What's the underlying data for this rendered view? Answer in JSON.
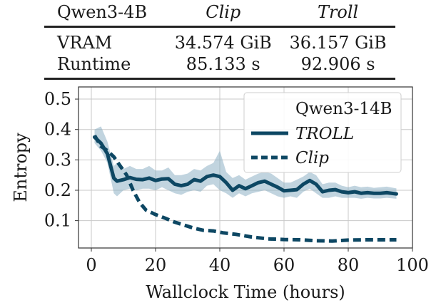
{
  "table": {
    "headers": [
      "Qwen3-4B",
      "Clip",
      "Troll"
    ],
    "rows": [
      {
        "label": "VRAM",
        "clip": "34.574 GiB",
        "troll": "36.157 GiB"
      },
      {
        "label": "Runtime",
        "clip": "85.133 s",
        "troll": "92.906 s"
      }
    ]
  },
  "chart_data": {
    "type": "line",
    "title": "",
    "xlabel": "Wallclock Time (hours)",
    "ylabel": "Entropy",
    "xlim": [
      -4,
      100
    ],
    "ylim": [
      0.01,
      0.54
    ],
    "xticks": [
      0,
      20,
      40,
      60,
      80,
      100
    ],
    "yticks": [
      0.1,
      0.2,
      0.3,
      0.4,
      0.5
    ],
    "xtick_labels": [
      "0",
      "20",
      "40",
      "60",
      "80",
      "100"
    ],
    "ytick_labels": [
      "0.1",
      "0.2",
      "0.3",
      "0.4",
      "0.5"
    ],
    "grid": true,
    "legend": {
      "title": "Qwen3-14B",
      "position": "top-right"
    },
    "colors": {
      "series": "#0d4763",
      "band": "#8eb1c5"
    },
    "series": [
      {
        "name": "TROLL",
        "style": "solid",
        "x": [
          1,
          3,
          5,
          7,
          8,
          10,
          12,
          14,
          16,
          18,
          20,
          22,
          24,
          26,
          28,
          30,
          32,
          34,
          36,
          38,
          40,
          42,
          44,
          46,
          48,
          50,
          52,
          54,
          56,
          58,
          60,
          62,
          64,
          66,
          68,
          70,
          72,
          74,
          76,
          78,
          80,
          82,
          84,
          86,
          88,
          90,
          92,
          95
        ],
        "y": [
          0.375,
          0.355,
          0.32,
          0.24,
          0.23,
          0.235,
          0.242,
          0.236,
          0.235,
          0.24,
          0.232,
          0.237,
          0.238,
          0.22,
          0.215,
          0.22,
          0.235,
          0.23,
          0.245,
          0.25,
          0.245,
          0.225,
          0.2,
          0.215,
          0.205,
          0.215,
          0.225,
          0.23,
          0.22,
          0.21,
          0.198,
          0.2,
          0.202,
          0.22,
          0.232,
          0.22,
          0.195,
          0.2,
          0.202,
          0.195,
          0.192,
          0.195,
          0.19,
          0.192,
          0.19,
          0.19,
          0.192,
          0.188
        ],
        "band": {
          "lower": [
            0.355,
            0.33,
            0.29,
            0.19,
            0.18,
            0.2,
            0.205,
            0.2,
            0.205,
            0.205,
            0.2,
            0.21,
            0.2,
            0.19,
            0.185,
            0.195,
            0.2,
            0.195,
            0.215,
            0.22,
            0.2,
            0.19,
            0.175,
            0.19,
            0.18,
            0.19,
            0.195,
            0.2,
            0.19,
            0.18,
            0.175,
            0.18,
            0.175,
            0.195,
            0.205,
            0.19,
            0.175,
            0.175,
            0.18,
            0.175,
            0.175,
            0.175,
            0.172,
            0.175,
            0.173,
            0.173,
            0.175,
            0.172
          ],
          "upper": [
            0.4,
            0.41,
            0.36,
            0.28,
            0.29,
            0.27,
            0.28,
            0.27,
            0.27,
            0.28,
            0.265,
            0.265,
            0.275,
            0.25,
            0.25,
            0.255,
            0.27,
            0.265,
            0.28,
            0.29,
            0.33,
            0.26,
            0.24,
            0.25,
            0.235,
            0.245,
            0.255,
            0.26,
            0.255,
            0.24,
            0.225,
            0.225,
            0.235,
            0.245,
            0.26,
            0.25,
            0.22,
            0.225,
            0.225,
            0.215,
            0.21,
            0.215,
            0.21,
            0.212,
            0.208,
            0.21,
            0.212,
            0.206
          ]
        }
      },
      {
        "name": "Clip",
        "style": "dashed",
        "x": [
          1,
          3,
          5,
          7,
          9,
          11,
          13,
          15,
          17,
          20,
          23,
          26,
          29,
          32,
          35,
          38,
          41,
          45,
          50,
          55,
          60,
          65,
          70,
          75,
          80,
          85,
          90,
          95
        ],
        "y": [
          0.38,
          0.345,
          0.33,
          0.31,
          0.28,
          0.25,
          0.2,
          0.16,
          0.135,
          0.12,
          0.108,
          0.095,
          0.085,
          0.075,
          0.068,
          0.066,
          0.06,
          0.055,
          0.046,
          0.04,
          0.038,
          0.037,
          0.034,
          0.033,
          0.036,
          0.037,
          0.037,
          0.037
        ]
      }
    ]
  }
}
